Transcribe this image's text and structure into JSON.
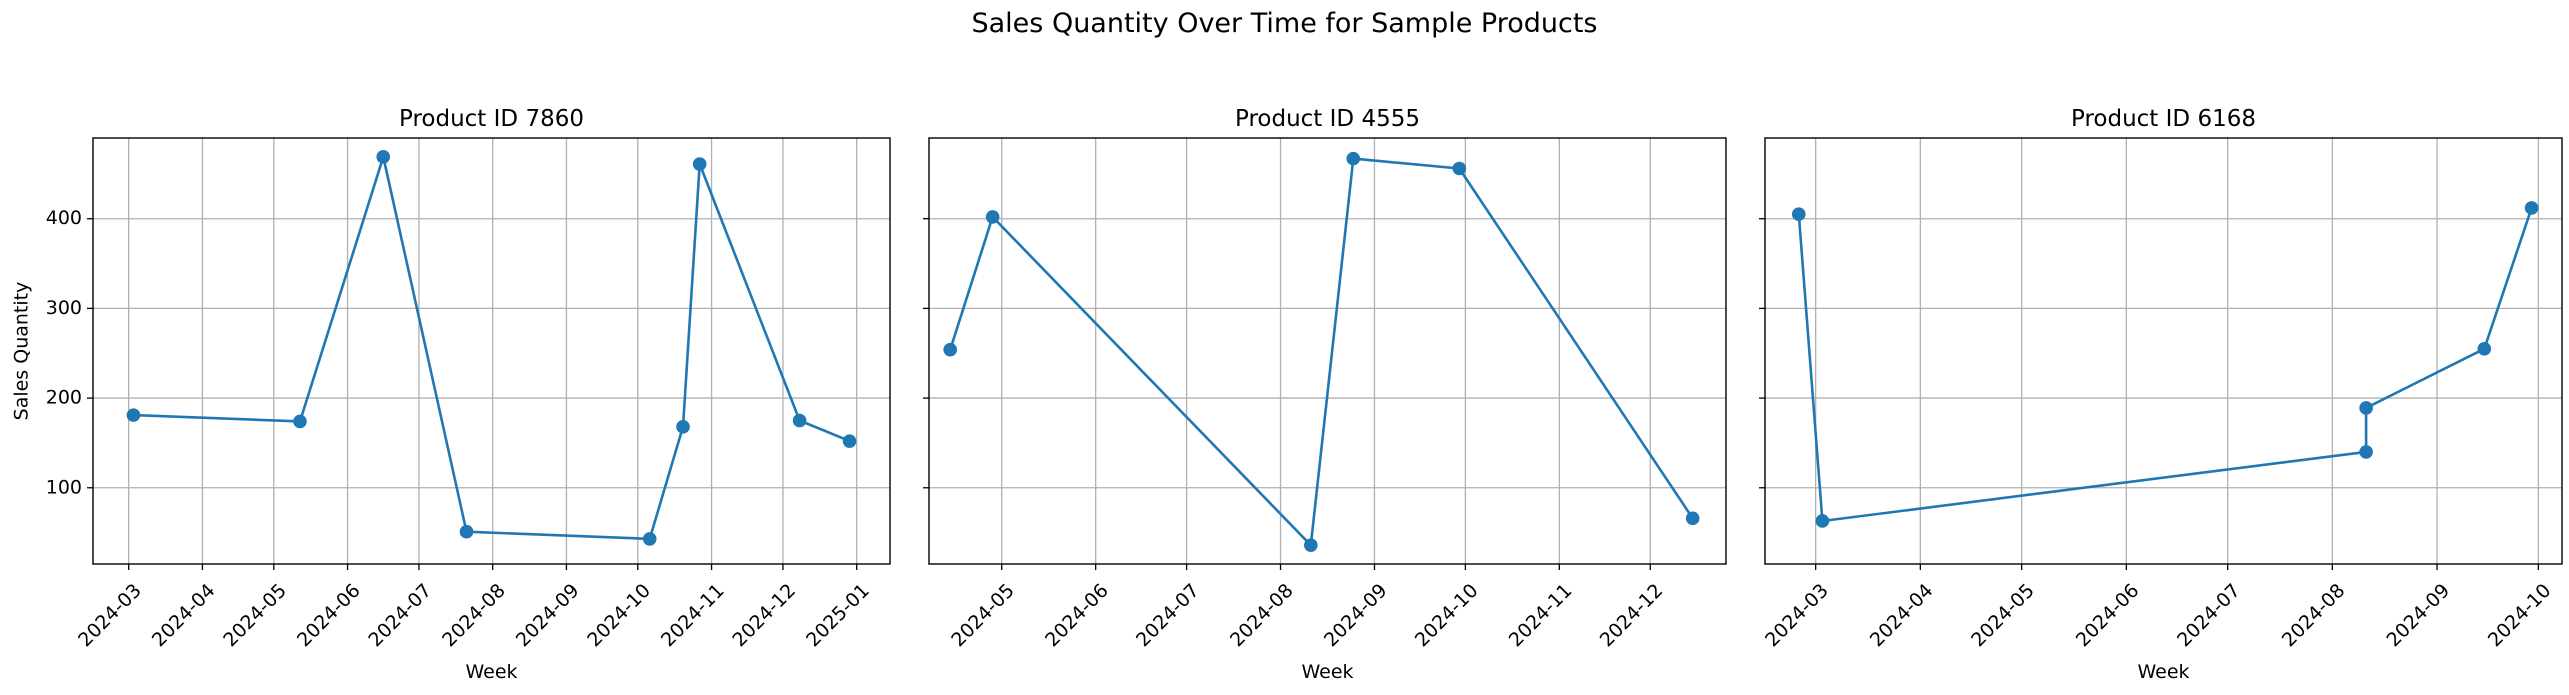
{
  "figure": {
    "suptitle": "Sales Quantity Over Time for Sample Products"
  },
  "colors": {
    "line": "#1f77b4",
    "grid": "#b0b0b0",
    "axes": "#000000"
  },
  "chart_data": [
    {
      "type": "line",
      "title": "Product ID 7860",
      "xlabel": "Week",
      "ylabel": "Sales Quantity",
      "xlim": [
        "2024-02-15",
        "2025-01-15"
      ],
      "ylim": [
        15,
        490
      ],
      "xticks": [
        "2024-03",
        "2024-04",
        "2024-05",
        "2024-06",
        "2024-07",
        "2024-08",
        "2024-09",
        "2024-10",
        "2024-11",
        "2024-12",
        "2025-01"
      ],
      "yticks": [
        100,
        200,
        300,
        400
      ],
      "grid": true,
      "marker": "circle",
      "x": [
        "2024-03-03",
        "2024-05-12",
        "2024-06-16",
        "2024-07-21",
        "2024-10-06",
        "2024-10-20",
        "2024-10-27",
        "2024-12-08",
        "2024-12-29"
      ],
      "y": [
        181,
        174,
        469,
        51,
        43,
        168,
        461,
        175,
        152
      ]
    },
    {
      "type": "line",
      "title": "Product ID 4555",
      "xlabel": "Week",
      "ylabel": "",
      "xlim": [
        "2024-04-07",
        "2024-12-26"
      ],
      "ylim": [
        15,
        490
      ],
      "xticks": [
        "2024-05",
        "2024-06",
        "2024-07",
        "2024-08",
        "2024-09",
        "2024-10",
        "2024-11",
        "2024-12"
      ],
      "yticks": [
        100,
        200,
        300,
        400
      ],
      "grid": true,
      "marker": "circle",
      "x": [
        "2024-04-14",
        "2024-04-28",
        "2024-08-11",
        "2024-08-25",
        "2024-09-29",
        "2024-12-15"
      ],
      "y": [
        254,
        402,
        36,
        467,
        456,
        66
      ]
    },
    {
      "type": "line",
      "title": "Product ID 6168",
      "xlabel": "Week",
      "ylabel": "",
      "xlim": [
        "2024-02-15",
        "2024-10-08"
      ],
      "ylim": [
        15,
        490
      ],
      "xticks": [
        "2024-03",
        "2024-04",
        "2024-05",
        "2024-06",
        "2024-07",
        "2024-08",
        "2024-09",
        "2024-10"
      ],
      "yticks": [
        100,
        200,
        300,
        400
      ],
      "grid": true,
      "marker": "circle",
      "x": [
        "2024-02-25",
        "2024-03-03",
        "2024-08-11",
        "2024-08-11",
        "2024-09-15",
        "2024-09-29"
      ],
      "y": [
        405,
        63,
        140,
        189,
        255,
        412
      ]
    }
  ]
}
